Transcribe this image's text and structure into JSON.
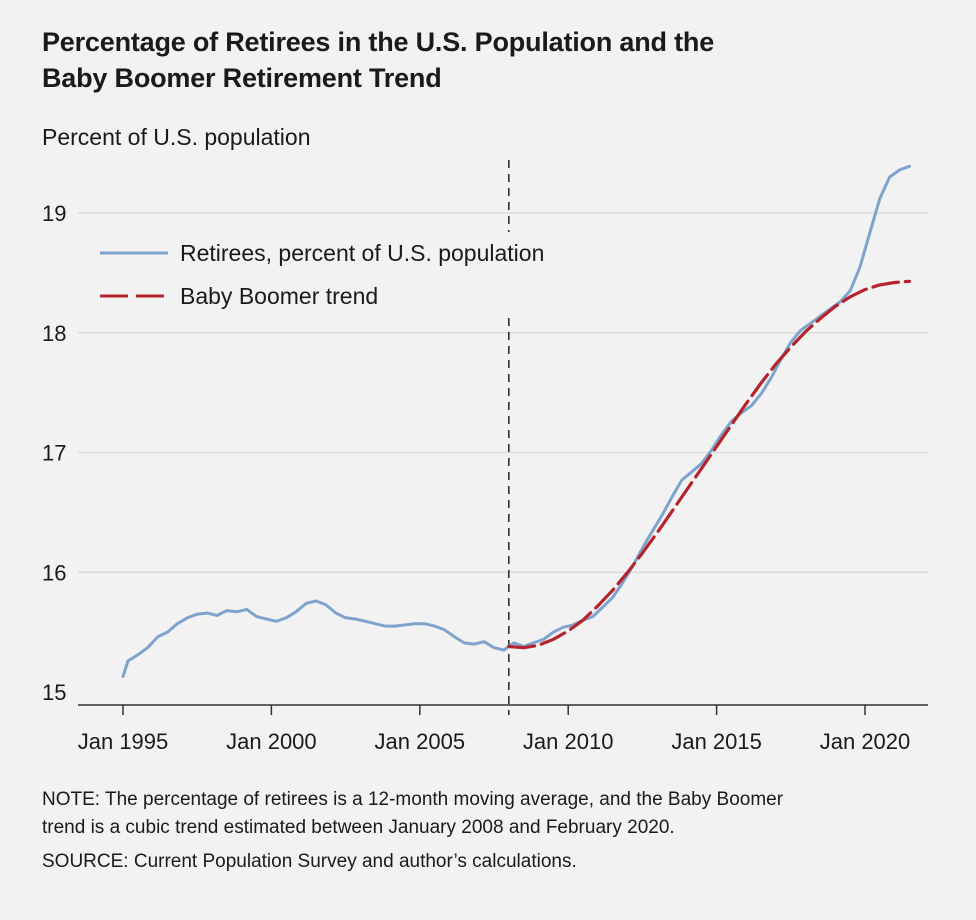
{
  "title": {
    "line1": "Percentage of Retirees in the U.S. Population and the",
    "line2": "Baby Boomer Retirement Trend"
  },
  "notes": {
    "note_line1": "NOTE: The percentage of retirees is a 12-month moving average, and the Baby Boomer",
    "note_line2": "trend is a cubic trend estimated between January 2008 and February 2020.",
    "source": "SOURCE: Current Population Survey and author’s calculations."
  },
  "colors": {
    "retirees": "#7ea3cc",
    "trend": "#b5242c",
    "grid": "#dcdcdc",
    "axis": "#333333",
    "background": "#f2f2f2"
  },
  "chart_data": {
    "type": "line",
    "ylabel": "Percent of U.S. population",
    "xlim": [
      1994.5,
      2022.2
    ],
    "ylim": [
      15,
      19.2
    ],
    "yticks": [
      15,
      16,
      17,
      18,
      19
    ],
    "ytick_labels": [
      "15",
      "16",
      "17",
      "18",
      "19"
    ],
    "xticks": [
      1995,
      2000,
      2005,
      2010,
      2015,
      2020
    ],
    "xtick_labels": [
      "Jan 1995",
      "Jan 2000",
      "Jan 2005",
      "Jan 2010",
      "Jan 2015",
      "Jan 2020"
    ],
    "grid": true,
    "legend": "top-left",
    "vertical_marker": {
      "x": 2008.0,
      "style": "dashed"
    },
    "series": [
      {
        "name": "Retirees, percent of U.S. population",
        "style": "solid",
        "x": [
          1995.0,
          1995.17,
          1995.5,
          1995.83,
          1996.17,
          1996.5,
          1996.83,
          1997.17,
          1997.5,
          1997.83,
          1998.17,
          1998.5,
          1998.83,
          1999.17,
          1999.5,
          1999.83,
          2000.17,
          2000.5,
          2000.83,
          2001.17,
          2001.5,
          2001.83,
          2002.17,
          2002.5,
          2002.83,
          2003.17,
          2003.5,
          2003.83,
          2004.17,
          2004.5,
          2004.83,
          2005.17,
          2005.5,
          2005.83,
          2006.17,
          2006.5,
          2006.83,
          2007.17,
          2007.5,
          2007.83,
          2008.0,
          2008.17,
          2008.5,
          2008.83,
          2009.17,
          2009.5,
          2009.83,
          2010.17,
          2010.5,
          2010.83,
          2011.17,
          2011.5,
          2011.83,
          2012.17,
          2012.5,
          2012.83,
          2013.17,
          2013.5,
          2013.83,
          2014.17,
          2014.5,
          2014.83,
          2015.17,
          2015.5,
          2015.83,
          2016.17,
          2016.5,
          2016.83,
          2017.17,
          2017.5,
          2017.83,
          2018.17,
          2018.5,
          2018.83,
          2019.17,
          2019.5,
          2019.83,
          2020.17,
          2020.5,
          2020.83,
          2021.17,
          2021.5
        ],
        "values": [
          15.13,
          15.26,
          15.31,
          15.37,
          15.46,
          15.5,
          15.57,
          15.62,
          15.65,
          15.66,
          15.64,
          15.68,
          15.67,
          15.69,
          15.63,
          15.61,
          15.59,
          15.62,
          15.67,
          15.74,
          15.76,
          15.73,
          15.66,
          15.62,
          15.61,
          15.59,
          15.57,
          15.55,
          15.55,
          15.56,
          15.57,
          15.57,
          15.55,
          15.52,
          15.46,
          15.41,
          15.4,
          15.42,
          15.37,
          15.35,
          15.38,
          15.41,
          15.38,
          15.41,
          15.44,
          15.5,
          15.54,
          15.56,
          15.6,
          15.63,
          15.71,
          15.79,
          15.91,
          16.05,
          16.2,
          16.34,
          16.48,
          16.63,
          16.77,
          16.84,
          16.91,
          17.02,
          17.15,
          17.26,
          17.33,
          17.39,
          17.49,
          17.62,
          17.78,
          17.92,
          18.02,
          18.08,
          18.14,
          18.2,
          18.26,
          18.35,
          18.55,
          18.84,
          19.12,
          19.3,
          19.36,
          19.39
        ]
      },
      {
        "name": "Baby Boomer trend",
        "style": "dashed",
        "x": [
          2008.0,
          2008.5,
          2009.0,
          2009.5,
          2010.0,
          2010.5,
          2011.0,
          2011.5,
          2012.0,
          2012.5,
          2013.0,
          2013.5,
          2014.0,
          2014.5,
          2015.0,
          2015.5,
          2016.0,
          2016.5,
          2017.0,
          2017.5,
          2018.0,
          2018.5,
          2019.0,
          2019.5,
          2020.0,
          2020.5,
          2021.0,
          2021.5
        ],
        "values": [
          15.38,
          15.37,
          15.39,
          15.44,
          15.51,
          15.6,
          15.72,
          15.85,
          16.0,
          16.16,
          16.33,
          16.51,
          16.69,
          16.87,
          17.05,
          17.23,
          17.41,
          17.58,
          17.74,
          17.88,
          18.01,
          18.12,
          18.22,
          18.3,
          18.36,
          18.4,
          18.42,
          18.43
        ]
      }
    ]
  }
}
